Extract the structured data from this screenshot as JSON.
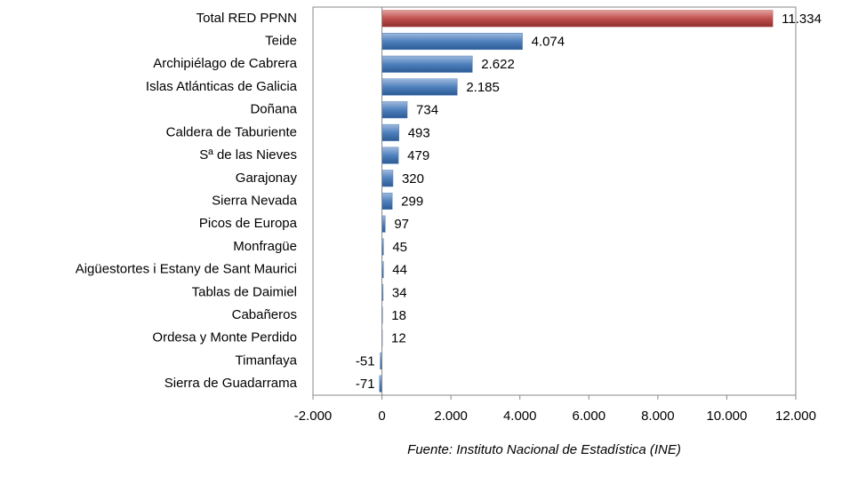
{
  "chart_data": {
    "type": "barh",
    "categories": [
      "Total RED PPNN",
      "Teide",
      "Archipiélago de Cabrera",
      "Islas Atlánticas de Galicia",
      "Doñana",
      "Caldera de Taburiente",
      "Sª de las Nieves",
      "Garajonay",
      "Sierra Nevada",
      "Picos de Europa",
      "Monfragüe",
      "Aigüestortes i Estany de Sant Maurici",
      "Tablas de Daimiel",
      "Cabañeros",
      "Ordesa y Monte Perdido",
      "Timanfaya",
      "Sierra de Guadarrama"
    ],
    "values": [
      11334,
      4074,
      2622,
      2185,
      734,
      493,
      479,
      320,
      299,
      97,
      45,
      44,
      34,
      18,
      12,
      -51,
      -71
    ],
    "value_labels": [
      "11.334",
      "4.074",
      "2.622",
      "2.185",
      "734",
      "493",
      "479",
      "320",
      "299",
      "97",
      "45",
      "44",
      "34",
      "18",
      "12",
      "-51",
      "-71"
    ],
    "colors": [
      "#c0504d",
      "#4f81bd",
      "#4f81bd",
      "#4f81bd",
      "#4f81bd",
      "#4f81bd",
      "#4f81bd",
      "#4f81bd",
      "#4f81bd",
      "#4f81bd",
      "#4f81bd",
      "#4f81bd",
      "#4f81bd",
      "#4f81bd",
      "#4f81bd",
      "#4f81bd",
      "#4f81bd"
    ],
    "xlim": [
      -2000,
      12000
    ],
    "xticks": [
      {
        "value": -2000,
        "label": "-2.000"
      },
      0,
      {
        "value": 2000,
        "label": "2.000"
      },
      {
        "value": 4000,
        "label": "4.000"
      },
      {
        "value": 6000,
        "label": "6.000"
      },
      {
        "value": 8000,
        "label": "8.000"
      },
      {
        "value": 10000,
        "label": "10.000"
      },
      {
        "value": 12000,
        "label": "12.000"
      }
    ],
    "grid": false,
    "source": "Fuente: Instituto Nacional de Estadística (INE)"
  }
}
